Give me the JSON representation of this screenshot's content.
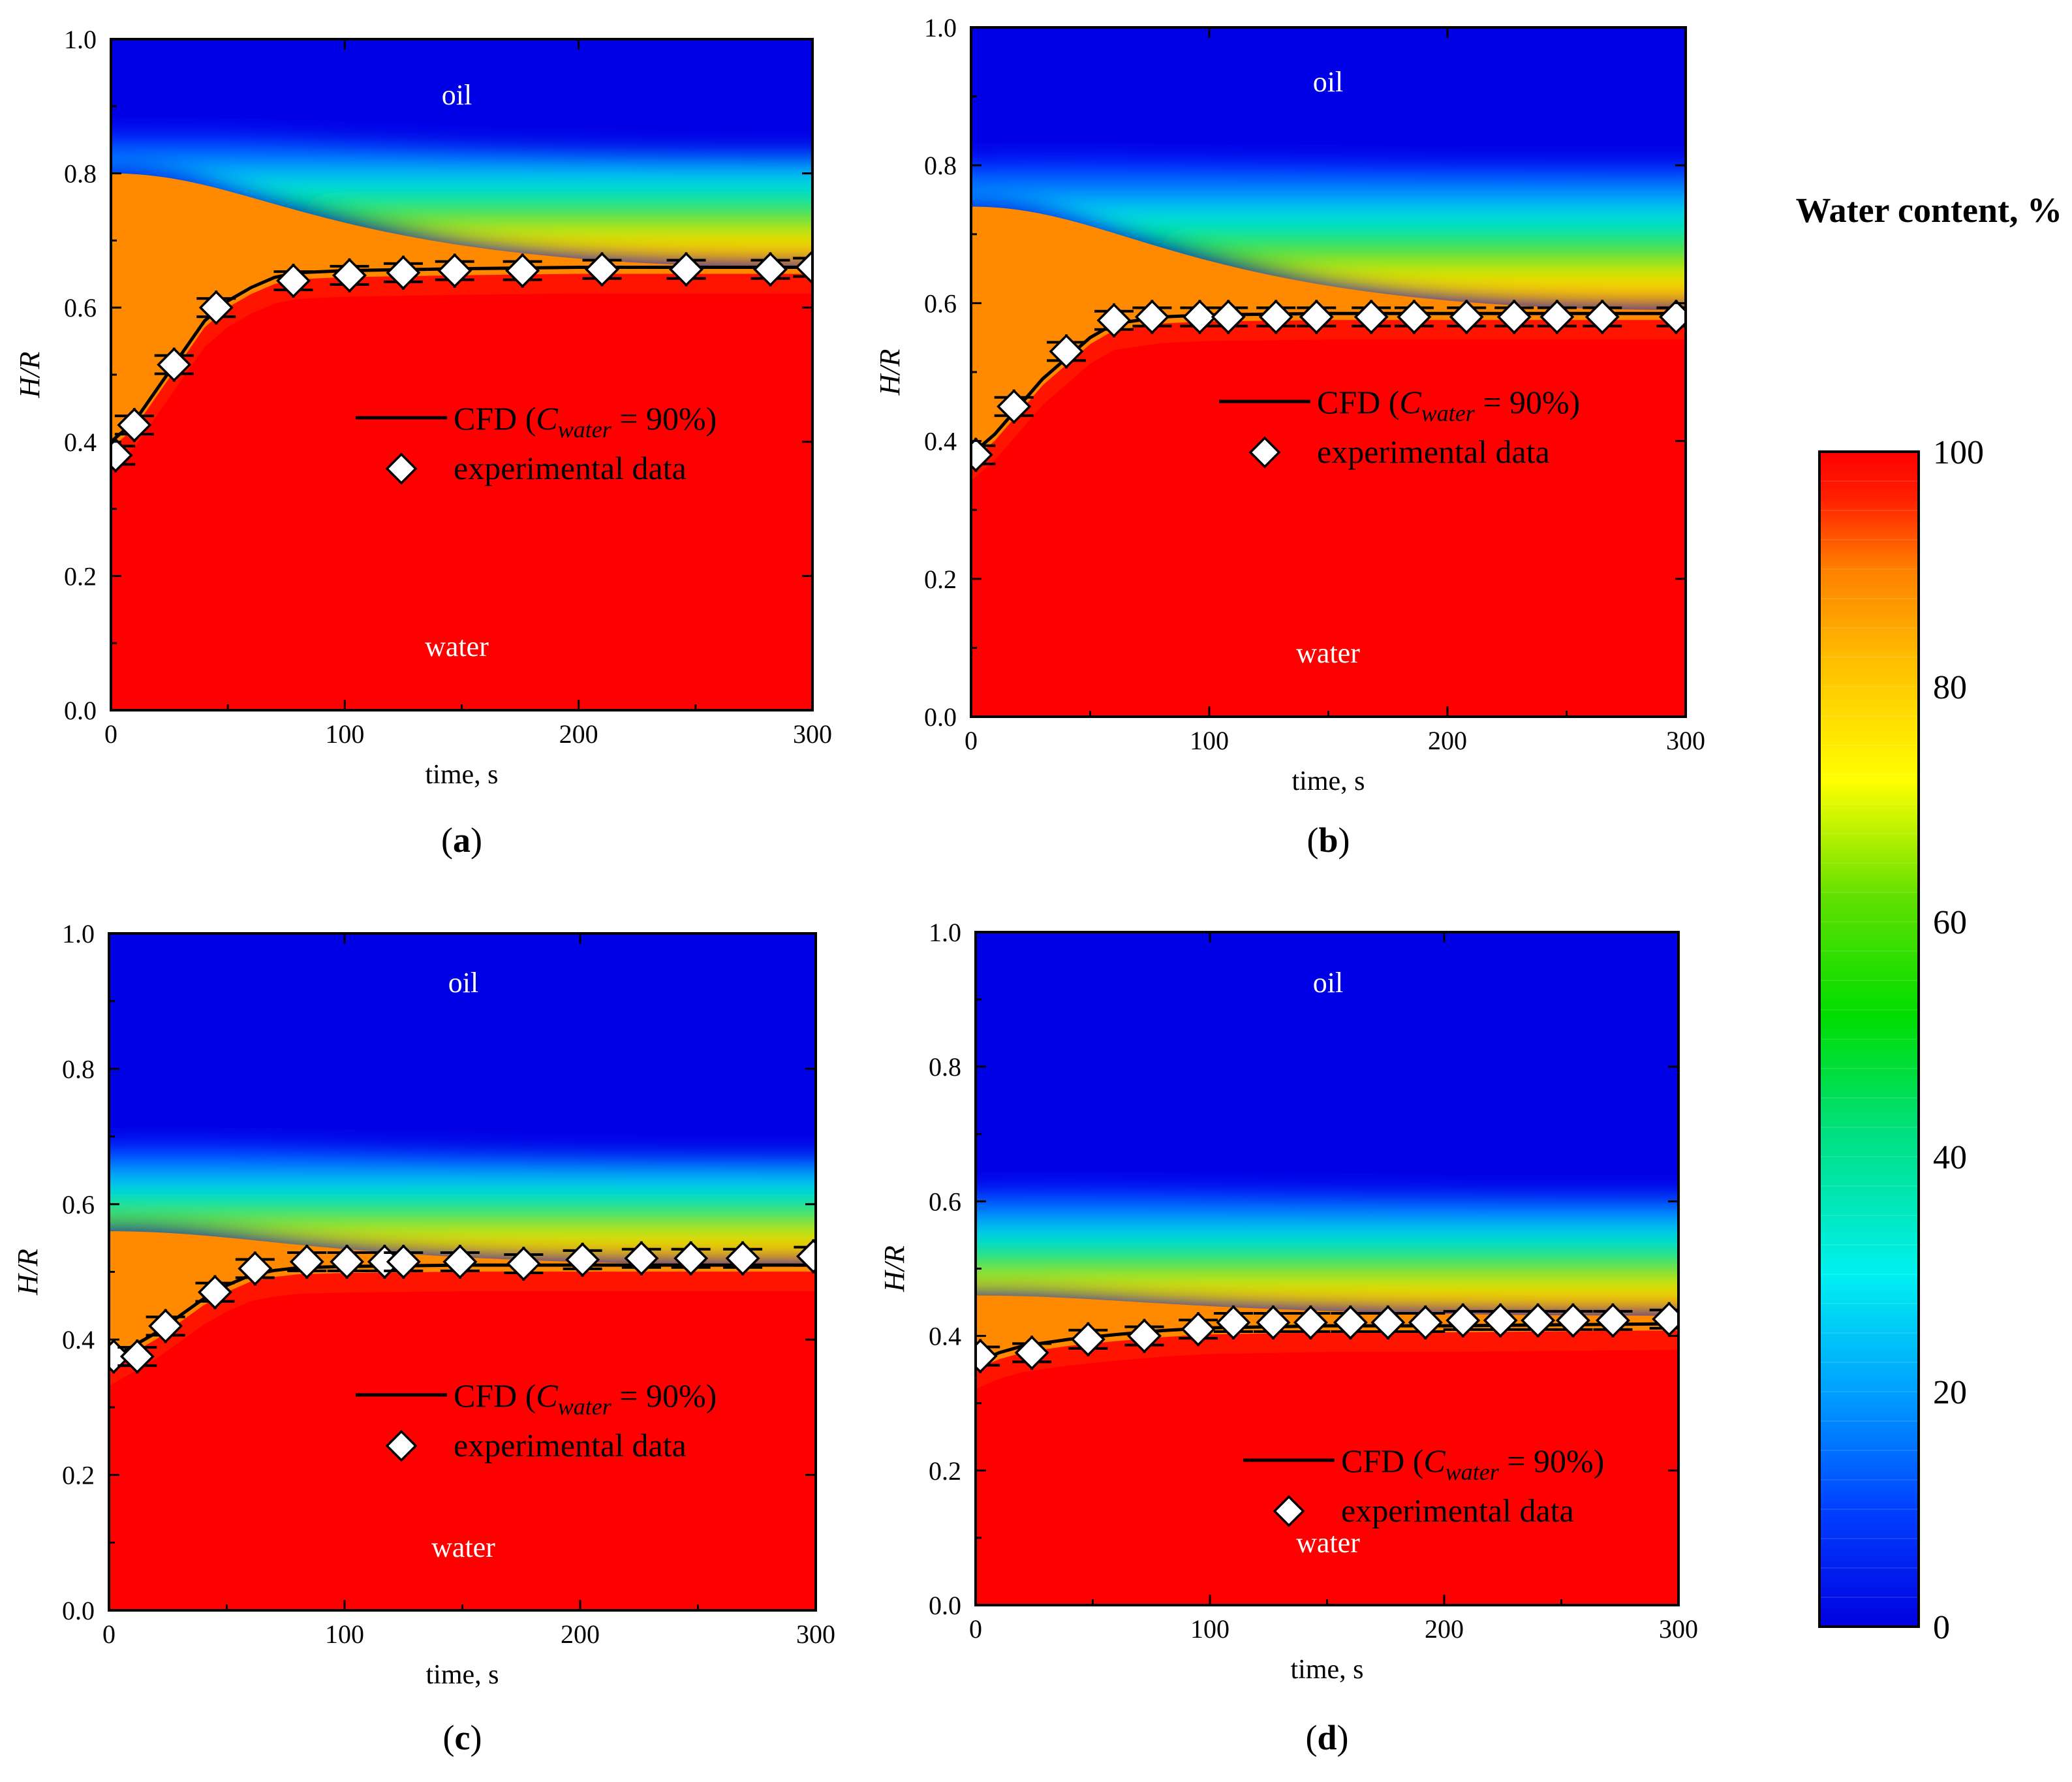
{
  "figure": {
    "colorbar": {
      "title": "Water content, %",
      "ticks": [
        "0",
        "20",
        "40",
        "60",
        "80",
        "100"
      ],
      "min": 0,
      "max": 100,
      "colors": {
        "0": "#0000e0",
        "10": "#0040ff",
        "20": "#00a0ff",
        "30": "#00f0f0",
        "40": "#00e080",
        "50": "#00dd00",
        "60": "#60e000",
        "70": "#ffff00",
        "80": "#ffc000",
        "90": "#ff8000",
        "100": "#ff0000"
      }
    },
    "legend": {
      "line_prefix": "CFD (",
      "line_var": "C",
      "line_sub": "water",
      "line_suffix": " = 90%)",
      "marker_label": "experimental data"
    },
    "regions": {
      "oil": "oil",
      "water": "water"
    }
  },
  "chart_data": [
    {
      "id": "a",
      "type": "contour_with_line_scatter",
      "panel_label_open": "(",
      "panel_label_letter": "a",
      "panel_label_close": ")",
      "xlabel": "time, s",
      "ylabel": "H/R",
      "xlim": [
        0,
        300
      ],
      "ylim": [
        0,
        1.0
      ],
      "xticks": [
        "0",
        "100",
        "200",
        "300"
      ],
      "yticks": [
        "0.0",
        "0.2",
        "0.4",
        "0.6",
        "0.8",
        "1.0"
      ],
      "contour": {
        "orange_top_start": 0.8,
        "orange_top_end": 0.66,
        "fade_top_start": 0.86,
        "fade_top_end": 0.83
      },
      "cfd_line": {
        "x": [
          0,
          10,
          20,
          30,
          40,
          50,
          60,
          70,
          80,
          100,
          150,
          200,
          300
        ],
        "y": [
          0.4,
          0.43,
          0.48,
          0.53,
          0.58,
          0.61,
          0.63,
          0.645,
          0.652,
          0.655,
          0.658,
          0.66,
          0.66
        ]
      },
      "experimental": {
        "x": [
          2,
          10,
          27,
          45,
          78,
          102,
          125,
          147,
          176,
          210,
          246,
          282,
          300
        ],
        "y": [
          0.38,
          0.425,
          0.515,
          0.6,
          0.64,
          0.648,
          0.652,
          0.655,
          0.655,
          0.657,
          0.657,
          0.657,
          0.66
        ]
      }
    },
    {
      "id": "b",
      "type": "contour_with_line_scatter",
      "panel_label_open": "(",
      "panel_label_letter": "b",
      "panel_label_close": ")",
      "xlabel": "time, s",
      "ylabel": "H/R",
      "xlim": [
        0,
        300
      ],
      "ylim": [
        0,
        1.0
      ],
      "xticks": [
        "0",
        "100",
        "200",
        "300"
      ],
      "yticks": [
        "0.0",
        "0.2",
        "0.4",
        "0.6",
        "0.8",
        "1.0"
      ],
      "contour": {
        "orange_top_start": 0.74,
        "orange_top_end": 0.59,
        "fade_top_start": 0.81,
        "fade_top_end": 0.8
      },
      "cfd_line": {
        "x": [
          0,
          10,
          20,
          30,
          40,
          50,
          60,
          80,
          100,
          150,
          200,
          300
        ],
        "y": [
          0.38,
          0.41,
          0.45,
          0.49,
          0.52,
          0.55,
          0.57,
          0.58,
          0.583,
          0.585,
          0.585,
          0.585
        ]
      },
      "experimental": {
        "x": [
          2,
          18,
          40,
          60,
          76,
          96,
          108,
          128,
          145,
          168,
          186,
          208,
          228,
          246,
          265,
          296
        ],
        "y": [
          0.38,
          0.45,
          0.53,
          0.575,
          0.58,
          0.58,
          0.58,
          0.58,
          0.58,
          0.58,
          0.58,
          0.58,
          0.58,
          0.58,
          0.58,
          0.58
        ]
      }
    },
    {
      "id": "c",
      "type": "contour_with_line_scatter",
      "panel_label_open": "(",
      "panel_label_letter": "c",
      "panel_label_close": ")",
      "xlabel": "time, s",
      "ylabel": "H/R",
      "xlim": [
        0,
        300
      ],
      "ylim": [
        0,
        1.0
      ],
      "xticks": [
        "0",
        "100",
        "200",
        "300"
      ],
      "yticks": [
        "0.0",
        "0.2",
        "0.4",
        "0.6",
        "0.8",
        "1.0"
      ],
      "contour": {
        "orange_top_start": 0.56,
        "orange_top_end": 0.51,
        "fade_top_start": 0.69,
        "fade_top_end": 0.67
      },
      "cfd_line": {
        "x": [
          0,
          10,
          20,
          30,
          40,
          50,
          60,
          70,
          80,
          100,
          150,
          200,
          300
        ],
        "y": [
          0.37,
          0.39,
          0.41,
          0.435,
          0.46,
          0.48,
          0.495,
          0.502,
          0.506,
          0.508,
          0.51,
          0.51,
          0.51
        ]
      },
      "experimental": {
        "x": [
          2,
          12,
          24,
          45,
          62,
          84,
          101,
          117,
          125,
          149,
          176,
          201,
          226,
          247,
          269,
          299
        ],
        "y": [
          0.375,
          0.375,
          0.42,
          0.47,
          0.505,
          0.515,
          0.515,
          0.515,
          0.515,
          0.515,
          0.512,
          0.518,
          0.52,
          0.52,
          0.52,
          0.523
        ]
      }
    },
    {
      "id": "d",
      "type": "contour_with_line_scatter",
      "panel_label_open": "(",
      "panel_label_letter": "d",
      "panel_label_close": ")",
      "xlabel": "time, s",
      "ylabel": "H/R",
      "xlim": [
        0,
        300
      ],
      "ylim": [
        0,
        1.0
      ],
      "xticks": [
        "0",
        "100",
        "200",
        "300"
      ],
      "yticks": [
        "0.0",
        "0.2",
        "0.4",
        "0.6",
        "0.8",
        "1.0"
      ],
      "contour": {
        "orange_top_start": 0.46,
        "orange_top_end": 0.43,
        "fade_top_start": 0.62,
        "fade_top_end": 0.61
      },
      "cfd_line": {
        "x": [
          0,
          10,
          20,
          40,
          60,
          80,
          100,
          150,
          200,
          300
        ],
        "y": [
          0.36,
          0.375,
          0.385,
          0.395,
          0.402,
          0.408,
          0.412,
          0.415,
          0.415,
          0.418
        ]
      },
      "experimental": {
        "x": [
          2,
          24,
          48,
          72,
          95,
          110,
          127,
          143,
          160,
          176,
          192,
          208,
          224,
          240,
          255,
          272,
          296
        ],
        "y": [
          0.37,
          0.375,
          0.395,
          0.4,
          0.41,
          0.42,
          0.42,
          0.42,
          0.42,
          0.42,
          0.42,
          0.423,
          0.423,
          0.423,
          0.423,
          0.423,
          0.425
        ]
      }
    }
  ]
}
